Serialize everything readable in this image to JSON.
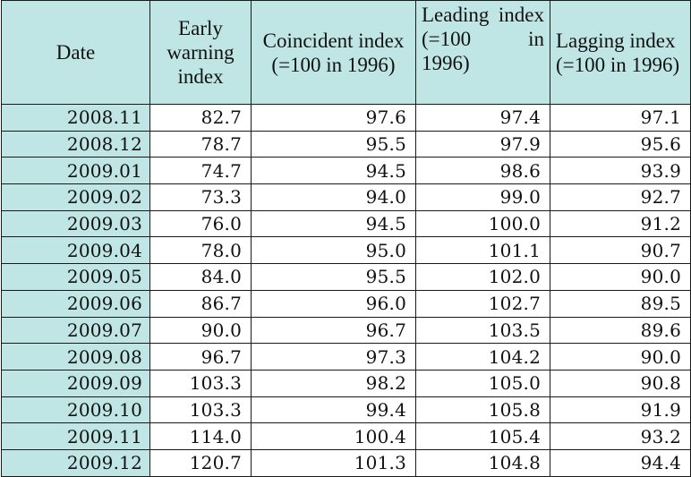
{
  "table": {
    "headers": [
      "Date",
      "Early warning index",
      "Coincident index (=100 in 1996)",
      "Leading index (=100 in 1996)",
      "Lagging index (=100 in 1996)"
    ],
    "rows": [
      [
        "2008.11",
        "82.7",
        "97.6",
        "97.4",
        "97.1"
      ],
      [
        "2008.12",
        "78.7",
        "95.5",
        "97.9",
        "95.6"
      ],
      [
        "2009.01",
        "74.7",
        "94.5",
        "98.6",
        "93.9"
      ],
      [
        "2009.02",
        "73.3",
        "94.0",
        "99.0",
        "92.7"
      ],
      [
        "2009.03",
        "76.0",
        "94.5",
        "100.0",
        "91.2"
      ],
      [
        "2009.04",
        "78.0",
        "95.0",
        "101.1",
        "90.7"
      ],
      [
        "2009.05",
        "84.0",
        "95.5",
        "102.0",
        "90.0"
      ],
      [
        "2009.06",
        "86.7",
        "96.0",
        "102.7",
        "89.5"
      ],
      [
        "2009.07",
        "90.0",
        "96.7",
        "103.5",
        "89.6"
      ],
      [
        "2009.08",
        "96.7",
        "97.3",
        "104.2",
        "90.0"
      ],
      [
        "2009.09",
        "103.3",
        "98.2",
        "105.0",
        "90.8"
      ],
      [
        "2009.10",
        "103.3",
        "99.4",
        "105.8",
        "91.9"
      ],
      [
        "2009.11",
        "114.0",
        "100.4",
        "105.4",
        "93.2"
      ],
      [
        "2009.12",
        "120.7",
        "101.3",
        "104.8",
        "94.4"
      ]
    ]
  },
  "colors": {
    "header_background": "#bfe6e4",
    "date_column_background": "#bfe6e4",
    "cell_background": "#ffffff",
    "border": "#1a1a1a"
  }
}
